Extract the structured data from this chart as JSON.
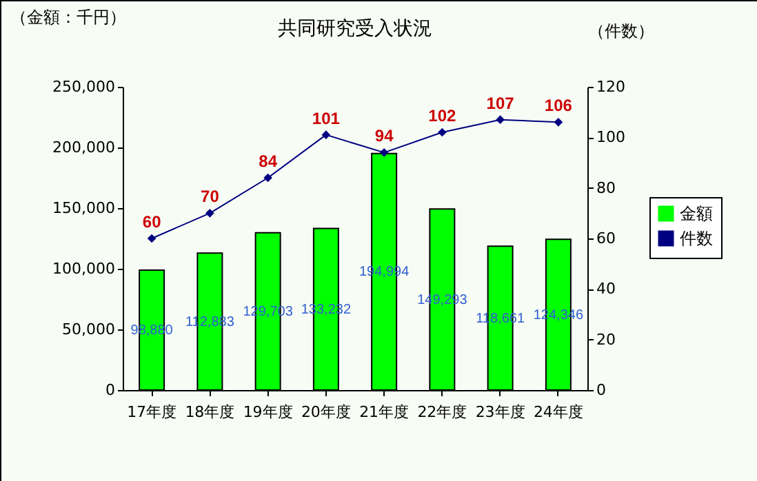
{
  "chart_data": {
    "type": "bar",
    "title": "共同研究受入状況",
    "ylabel": "（金額：千円）",
    "y2label": "（件数）",
    "categories": [
      "17年度",
      "18年度",
      "19年度",
      "20年度",
      "21年度",
      "22年度",
      "23年度",
      "24年度"
    ],
    "series": [
      {
        "name": "金額",
        "color": "#00ff00",
        "values": [
          98880,
          112883,
          129703,
          133232,
          194994,
          149293,
          118661,
          124346
        ],
        "value_labels": [
          "98,880",
          "112,883",
          "129,703",
          "133,232",
          "194,994",
          "149,293",
          "118,661",
          "124,346"
        ]
      },
      {
        "name": "件数",
        "type": "line",
        "axis": "y2",
        "color": "#000080",
        "marker": "diamond",
        "values": [
          60,
          70,
          84,
          101,
          94,
          102,
          107,
          106
        ],
        "value_labels": [
          "60",
          "70",
          "84",
          "101",
          "94",
          "102",
          "107",
          "106"
        ]
      }
    ],
    "ylim": [
      0,
      250000
    ],
    "yticks": [
      0,
      {
        "value": 50000,
        "label": "50,000"
      },
      {
        "value": 100000,
        "label": "100,000"
      },
      {
        "value": 150000,
        "label": "150,000"
      },
      {
        "value": 200000,
        "label": "200,000"
      },
      {
        "value": 250000,
        "label": "250,000"
      }
    ],
    "y2lim": [
      0,
      120
    ],
    "y2ticks": [
      0,
      20,
      40,
      60,
      80,
      100,
      120
    ],
    "legend": "right"
  }
}
